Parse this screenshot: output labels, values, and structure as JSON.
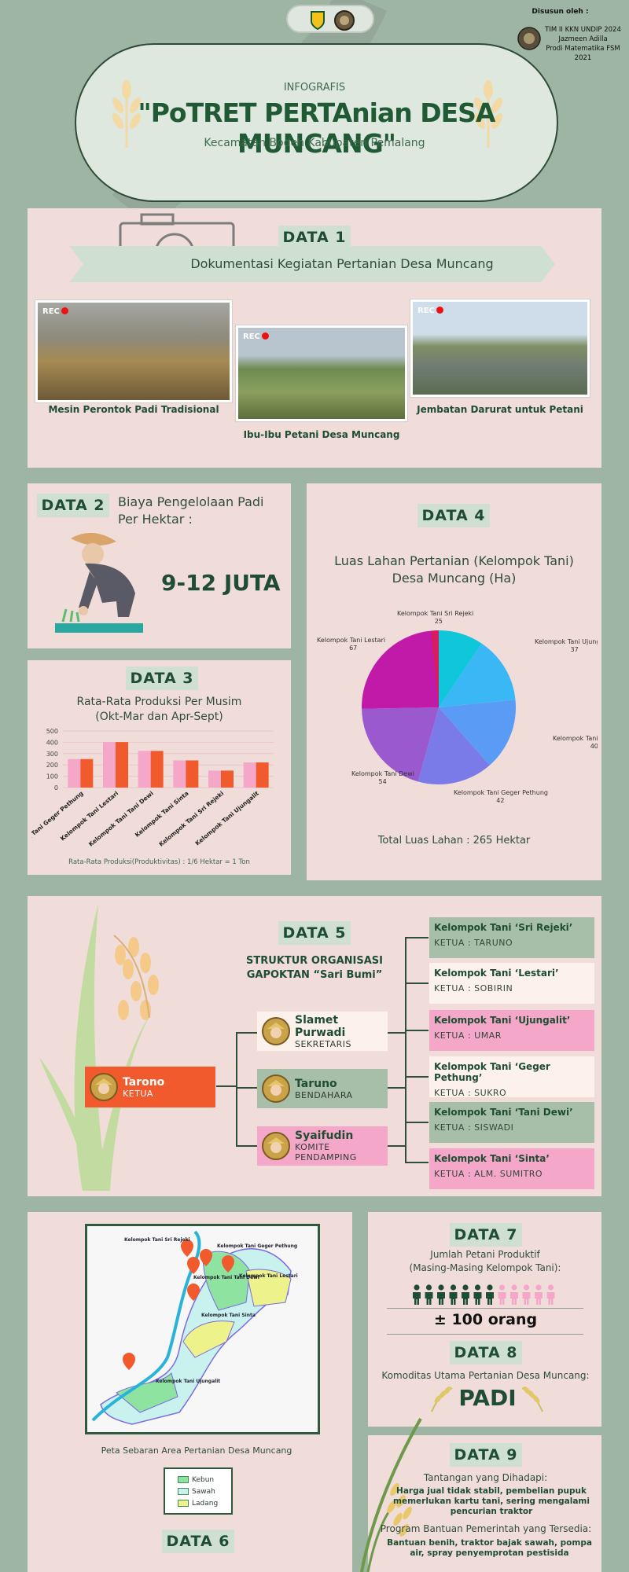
{
  "credits": {
    "heading": "Disusun oleh :",
    "lines": [
      "TIM II KKN UNDIP 2024",
      "Jazmeen Adilla",
      "Prodi Matematika FSM 2021"
    ]
  },
  "header": {
    "kicker": "INFOGRAFIS",
    "title": "\"PoTRET PERTAnian DESA MUNCANG\"",
    "subtitle": "Kecamatan Bodeh Kabupaten Pemalang"
  },
  "data1": {
    "tag": "DATA 1",
    "banner": "Dokumentasi Kegiatan Pertanian Desa Muncang",
    "rec_label": "REC",
    "photos": [
      {
        "caption": "Mesin Perontok Padi Tradisional"
      },
      {
        "caption": "Ibu-Ibu Petani Desa Muncang"
      },
      {
        "caption": "Jembatan Darurat untuk Petani"
      }
    ]
  },
  "data2": {
    "tag": "DATA 2",
    "label_line1": "Biaya Pengelolaan Padi",
    "label_line2": "Per Hektar :",
    "value": "9-12 JUTA"
  },
  "data3": {
    "tag": "DATA 3",
    "title_line1": "Rata-Rata Produksi Per Musim",
    "title_line2": "(Okt-Mar dan Apr-Sept)",
    "footnote": "Rata-Rata Produksi(Produktivitas) : 1/6 Hektar = 1 Ton",
    "chart_data": {
      "type": "bar",
      "categories": [
        "Kelompok Tani Geger Pethung",
        "Kelompok Tani Lestari",
        "Kelompok Tani Tani Dewi",
        "Kelompok Tani Sinta",
        "Kelompok Tani Sri Rejeki",
        "Kelompok Tani Ujungalit"
      ],
      "series": [
        {
          "values": [
            252,
            402,
            324,
            240,
            150,
            222
          ],
          "color": "#f4a7c9"
        },
        {
          "values": [
            252,
            402,
            324,
            240,
            150,
            222
          ],
          "color": "#f05a2c"
        }
      ],
      "ylim": [
        0,
        500
      ],
      "yticks": [
        "0",
        "100",
        "200",
        "300",
        "400",
        "500"
      ],
      "grid": true
    }
  },
  "data4": {
    "tag": "DATA 4",
    "title_line1": "Luas Lahan Pertanian (Kelompok Tani)",
    "title_line2": "Desa Muncang (Ha)",
    "total": "Total Luas Lahan : 265 Hektar",
    "chart_data": {
      "type": "pie",
      "slices": [
        {
          "label": "Kelompok Tani Sri Rejeki",
          "value": 25,
          "color": "#0fc6da"
        },
        {
          "label": "Kelompok Tani Ujungalit",
          "value": 37,
          "color": "#3ab8f5"
        },
        {
          "label": "Kelompok Tani Tani Sinta",
          "value": 40,
          "color": "#5a9cf5"
        },
        {
          "label": "Kelompok Tani Geger Pethung",
          "value": 42,
          "color": "#7a7be8"
        },
        {
          "label": "Kelompok Tani Dewi",
          "value": 54,
          "color": "#9b59d0"
        },
        {
          "label": "Kelompok Tani Lestari",
          "value": 67,
          "color": "#c11aa9"
        }
      ]
    }
  },
  "data5": {
    "tag": "DATA 5",
    "title_line1": "STRUKTUR ORGANISASI",
    "title_line2": "GAPOKTAN “Sari Bumi”",
    "leaders": [
      {
        "name": "Tarono",
        "role": "KETUA"
      },
      {
        "name": "Slamet Purwadi",
        "role": "SEKRETARIS"
      },
      {
        "name": "Taruno",
        "role": "BENDAHARA"
      },
      {
        "name": "Syaifudin",
        "role": "KOMITE PENDAMPING"
      }
    ],
    "groups": [
      {
        "title": "Kelompok Tani ‘Sri Rejeki’",
        "ketua": "KETUA : TARUNO",
        "bg": "#a7bfa9"
      },
      {
        "title": "Kelompok Tani ‘Lestari’",
        "ketua": "KETUA : SOBIRIN",
        "bg": "#fdf1ec"
      },
      {
        "title": "Kelompok Tani ‘Ujungalit’",
        "ketua": "KETUA : UMAR",
        "bg": "#f4a7c9"
      },
      {
        "title": "Kelompok Tani ‘Geger Pethung’",
        "ketua": "KETUA : SUKRO",
        "bg": "#fdf1ec"
      },
      {
        "title": "Kelompok Tani ‘Tani Dewi’",
        "ketua": "KETUA : SISWADI",
        "bg": "#a7bfa9"
      },
      {
        "title": "Kelompok Tani ‘Sinta’",
        "ketua": "KETUA : ALM. SUMITRO",
        "bg": "#f4a7c9"
      }
    ]
  },
  "data6": {
    "tag": "DATA 6",
    "caption": "Peta Sebaran Area Pertanian Desa Muncang",
    "map_labels": [
      "Kelompok Tani Sri Rejeki",
      "Kelompok Tani Geger Pethung",
      "Kelompok Tani Tani Dewi",
      "Kelompok Tani Lestari",
      "Kelompok Tani Sinta",
      "Kelompok Tani Ujungalit"
    ],
    "legend": [
      {
        "label": "Kebun",
        "color": "#8fe3a0"
      },
      {
        "label": "Sawah",
        "color": "#c9f2ee"
      },
      {
        "label": "Ladang",
        "color": "#eef28a"
      }
    ]
  },
  "data7": {
    "tag": "DATA 7",
    "label_line1": "Jumlah Petani Produktif",
    "label_line2": "(Masing-Masing Kelompok Tani):",
    "value": "± 100 orang"
  },
  "data8": {
    "tag": "DATA 8",
    "label": "Komoditas Utama Pertanian Desa Muncang:",
    "value": "PADI"
  },
  "data9": {
    "tag": "DATA 9",
    "challenge_label": "Tantangan yang Dihadapi:",
    "challenge_text": "Harga jual tidak stabil, pembelian pupuk memerlukan kartu tani, sering mengalami pencurian traktor",
    "program_label": "Program Bantuan Pemerintah yang Tersedia:",
    "program_text": "Bantuan benih, traktor bajak sawah, pompa air, spray penyemprotan pestisida"
  }
}
